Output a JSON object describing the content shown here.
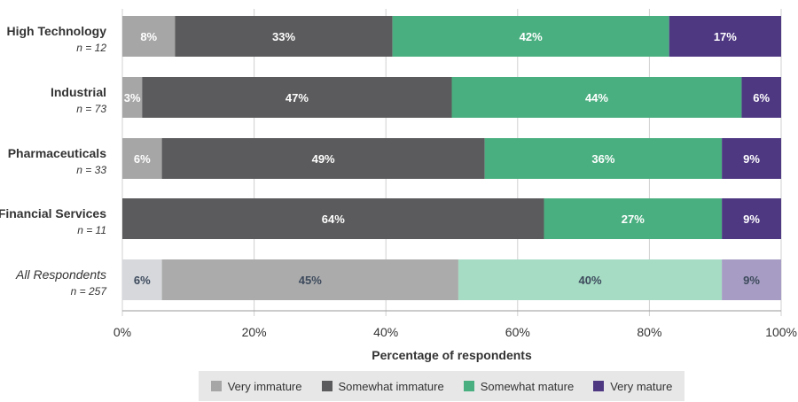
{
  "chart_data": {
    "type": "bar",
    "orientation": "horizontal",
    "stacked": true,
    "xlabel": "Percentage of respondents",
    "xlim": [
      0,
      100
    ],
    "xticks": [
      "0%",
      "20%",
      "40%",
      "60%",
      "80%",
      "100%"
    ],
    "grid": true,
    "legend_position": "bottom",
    "categories": [
      {
        "name": "High Technology",
        "n": "n = 12",
        "italic": false
      },
      {
        "name": "Industrial",
        "n": "n = 73",
        "italic": false
      },
      {
        "name": "Pharmaceuticals",
        "n": "n = 33",
        "italic": false
      },
      {
        "name": "Financial Services",
        "n": "n = 11",
        "italic": false
      },
      {
        "name": "All Respondents",
        "n": "n = 257",
        "italic": true
      }
    ],
    "series": [
      {
        "name": "Very immature",
        "color": "#a6a6a6",
        "values": [
          8,
          3,
          6,
          0,
          6
        ],
        "labels": [
          "8%",
          "3%",
          "6%",
          "",
          "6%"
        ]
      },
      {
        "name": "Somewhat immature",
        "color": "#5b5a5c",
        "values": [
          33,
          47,
          49,
          64,
          45
        ],
        "labels": [
          "33%",
          "47%",
          "49%",
          "64%",
          "45%"
        ]
      },
      {
        "name": "Somewhat mature",
        "color": "#4aaf80",
        "values": [
          42,
          44,
          36,
          27,
          40
        ],
        "labels": [
          "42%",
          "44%",
          "36%",
          "27%",
          "40%"
        ]
      },
      {
        "name": "Very mature",
        "color": "#4e3882",
        "values": [
          17,
          6,
          9,
          9,
          9
        ],
        "labels": [
          "17%",
          "6%",
          "9%",
          "9%",
          "9%"
        ]
      }
    ],
    "highlight_colors": [
      "#d6d8dc",
      "#ababab",
      "#a6dcc4",
      "#a79dc4"
    ],
    "highlight_label_color": "#3d4a5c"
  }
}
